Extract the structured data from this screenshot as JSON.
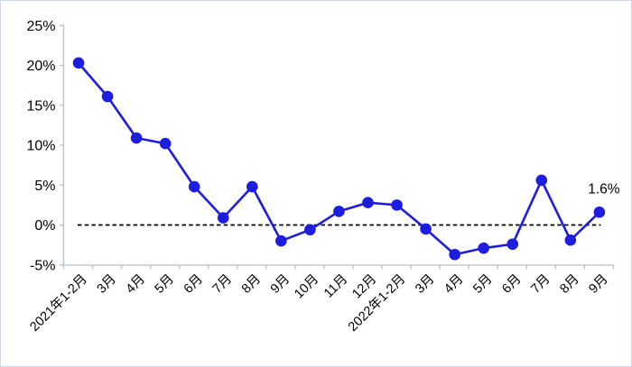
{
  "chart_data": {
    "type": "line",
    "title": "",
    "xlabel": "",
    "ylabel": "",
    "categories": [
      "2021年1-2月",
      "3月",
      "4月",
      "5月",
      "6月",
      "7月",
      "8月",
      "9月",
      "10月",
      "11月",
      "12月",
      "2022年1-2月",
      "3月",
      "4月",
      "5月",
      "6月",
      "7月",
      "8月",
      "9月"
    ],
    "values": [
      20.3,
      16.1,
      10.9,
      10.2,
      4.8,
      0.9,
      4.8,
      -2.0,
      -0.6,
      1.7,
      2.8,
      2.5,
      -0.5,
      -3.7,
      -2.9,
      -2.4,
      5.6,
      -1.9,
      1.6
    ],
    "ylim": [
      -5,
      25
    ],
    "ytick_labels": [
      "25%",
      "20%",
      "15%",
      "10%",
      "5%",
      "0%",
      "-5%"
    ],
    "ytick_values": [
      25,
      20,
      15,
      10,
      5,
      0,
      -5
    ],
    "grid": false,
    "legend_position": "none",
    "zero_line_style": "dashed",
    "annotations": [
      {
        "text": "1.6%",
        "point_index": 18
      }
    ],
    "colors": {
      "line": "#1d1ddf",
      "marker": "#1d1ddf",
      "zero_line": "#000000",
      "axis": "#b4bfd2",
      "text": "#000000",
      "background": "#ffffff",
      "border": "#cdd7e6"
    }
  }
}
